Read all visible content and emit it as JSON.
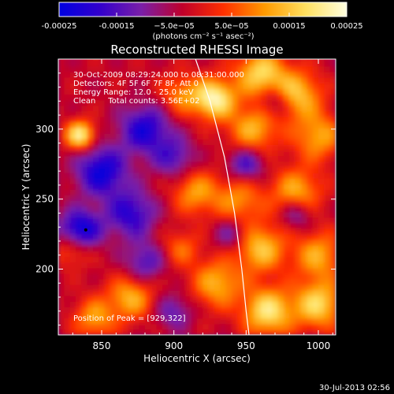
{
  "chart_data": {
    "type": "heatmap",
    "title": "Reconstructed RHESSI Image",
    "xlabel": "Heliocentric X (arcsec)",
    "ylabel": "Heliocentric Y (arcsec)",
    "xlim": [
      820,
      1012
    ],
    "ylim": [
      153,
      350
    ],
    "x_ticks": [
      850,
      900,
      950,
      1000
    ],
    "y_ticks": [
      200,
      250,
      300
    ],
    "colorbar": {
      "range": [
        -0.00025,
        0.00025
      ],
      "tick_values": [
        -0.00025,
        -0.00015,
        -5e-05,
        5e-05,
        0.00015,
        0.00025
      ],
      "tick_labels": [
        "-0.00025",
        "-0.00015",
        "−5.0e−05",
        "5.0e−05",
        "0.00015",
        "0.00025"
      ],
      "unit_label": "(photons cm⁻² s⁻¹ asec⁻²)",
      "colors": [
        "#0000e0",
        "#3300cc",
        "#7a1fa8",
        "#c0002a",
        "#ff3000",
        "#ff9a00",
        "#ffe060",
        "#ffffe0"
      ]
    },
    "annotations": [
      "30-Oct-2009 08:29:24.000 to 08:31:00.000",
      "Detectors: 4F 5F 6F 7F 8F, Att 0",
      "Energy Range: 12.0 - 25.0 keV",
      "Clean     Total counts: 3.56E+02"
    ],
    "peak_label": "Position of Peak = [929,322]",
    "peak_position": [
      929,
      322
    ],
    "limb_curve": [
      [
        915,
        350
      ],
      [
        925,
        320
      ],
      [
        935,
        280
      ],
      [
        942,
        240
      ],
      [
        947,
        200
      ],
      [
        950,
        170
      ],
      [
        952,
        153
      ]
    ],
    "emission_sources": [
      {
        "x": 835,
        "y": 296,
        "v": 0.00024,
        "s": 7
      },
      {
        "x": 928,
        "y": 322,
        "v": 0.00025,
        "s": 10
      },
      {
        "x": 905,
        "y": 325,
        "v": 0.00012,
        "s": 10
      },
      {
        "x": 960,
        "y": 340,
        "v": 0.0002,
        "s": 12
      },
      {
        "x": 985,
        "y": 325,
        "v": 0.00018,
        "s": 12
      },
      {
        "x": 955,
        "y": 300,
        "v": 0.00016,
        "s": 12
      },
      {
        "x": 1000,
        "y": 295,
        "v": 0.00015,
        "s": 12
      },
      {
        "x": 915,
        "y": 255,
        "v": 0.00014,
        "s": 11
      },
      {
        "x": 945,
        "y": 250,
        "v": 0.00013,
        "s": 12
      },
      {
        "x": 985,
        "y": 255,
        "v": 0.00016,
        "s": 12
      },
      {
        "x": 960,
        "y": 215,
        "v": 0.00018,
        "s": 12
      },
      {
        "x": 1000,
        "y": 210,
        "v": 0.00015,
        "s": 12
      },
      {
        "x": 930,
        "y": 190,
        "v": 0.00016,
        "s": 12
      },
      {
        "x": 965,
        "y": 170,
        "v": 0.00022,
        "s": 12
      },
      {
        "x": 1000,
        "y": 175,
        "v": 0.0002,
        "s": 12
      },
      {
        "x": 870,
        "y": 180,
        "v": 0.00016,
        "s": 11
      },
      {
        "x": 845,
        "y": 165,
        "v": 0.00014,
        "s": 10
      },
      {
        "x": 905,
        "y": 215,
        "v": 0.0001,
        "s": 9
      },
      {
        "x": 830,
        "y": 215,
        "v": 0.00011,
        "s": 9
      },
      {
        "x": 850,
        "y": 270,
        "v": -0.0002,
        "s": 12
      },
      {
        "x": 835,
        "y": 228,
        "v": -0.00022,
        "s": 10
      },
      {
        "x": 880,
        "y": 300,
        "v": -0.00018,
        "s": 12
      },
      {
        "x": 870,
        "y": 240,
        "v": -0.00016,
        "s": 12
      },
      {
        "x": 900,
        "y": 280,
        "v": -0.00012,
        "s": 10
      },
      {
        "x": 950,
        "y": 275,
        "v": -0.00014,
        "s": 9
      },
      {
        "x": 985,
        "y": 240,
        "v": -0.00012,
        "s": 8
      },
      {
        "x": 970,
        "y": 320,
        "v": -0.00012,
        "s": 8
      },
      {
        "x": 880,
        "y": 205,
        "v": -0.00012,
        "s": 10
      },
      {
        "x": 900,
        "y": 170,
        "v": -0.0001,
        "s": 9
      },
      {
        "x": 940,
        "y": 225,
        "v": -0.0001,
        "s": 8
      }
    ]
  },
  "footer": {
    "date": "30-Jul-2013 02:56"
  }
}
